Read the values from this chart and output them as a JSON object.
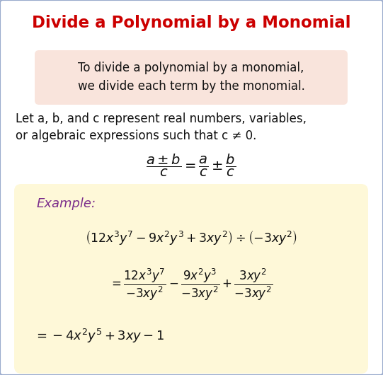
{
  "title": "Divide a Polynomial by a Monomial",
  "title_color": "#cc0000",
  "bg_color": "#ffffff",
  "border_color": "#99aacc",
  "box1_bg": "#f9e4dc",
  "box1_text1": "To divide a polynomial by a monomial,",
  "box1_text2": "we divide each term by the monomial.",
  "body_text1": "Let a, b, and c represent real numbers, variables,",
  "body_text2": "or algebraic expressions such that c ≠ 0.",
  "formula": "$\\dfrac{a \\pm b}{c} = \\dfrac{a}{c} \\pm \\dfrac{b}{c}$",
  "example_bg": "#fef8d8",
  "example_label": "Example:",
  "example_label_color": "#7B2D8B",
  "line1": "$\\left(12x^3y^7 - 9x^2y^3 + 3xy^2\\right) \\div \\left(-3xy^2\\right)$",
  "line2": "$= \\dfrac{12x^3y^7}{-3xy^2} - \\dfrac{9x^2y^3}{-3xy^2} + \\dfrac{3xy^2}{-3xy^2}$",
  "line3": "$= -4x^2y^5 + 3xy - 1$",
  "figsize": [
    5.41,
    5.3
  ],
  "dpi": 100
}
